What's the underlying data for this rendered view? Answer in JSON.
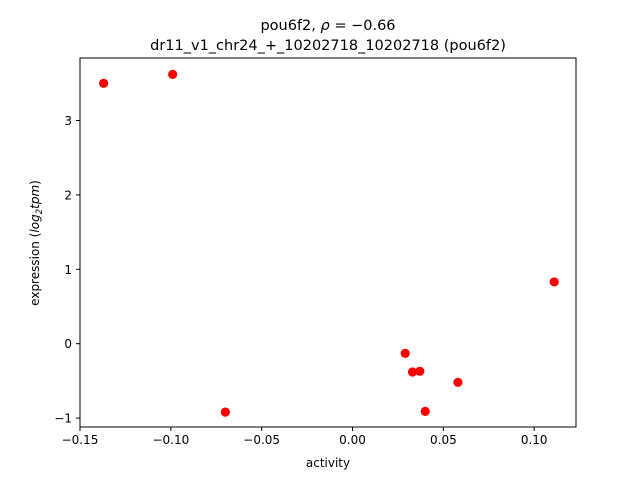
{
  "chart_data": {
    "type": "scatter",
    "title_line1_prefix": "pou6f2, ",
    "title_line1_rho": "ρ",
    "title_line1_suffix": " = −0.66",
    "title_line2": "dr11_v1_chr24_+_10202718_10202718 (pou6f2)",
    "xlabel": "activity",
    "ylabel_prefix": "expression (",
    "ylabel_math": "log",
    "ylabel_sub": "2",
    "ylabel_math2": "tpm",
    "ylabel_suffix": ")",
    "xlim": [
      -0.15,
      0.123
    ],
    "ylim": [
      -1.12,
      3.84
    ],
    "xticks": [
      -0.15,
      -0.1,
      -0.05,
      0.0,
      0.05,
      0.1
    ],
    "xtick_labels": [
      "−0.15",
      "−0.10",
      "−0.05",
      "0.00",
      "0.05",
      "0.10"
    ],
    "yticks": [
      -1,
      0,
      1,
      2,
      3
    ],
    "ytick_labels": [
      "−1",
      "0",
      "1",
      "2",
      "3"
    ],
    "grid": false,
    "marker_color": "#ff0000",
    "points": [
      {
        "x": -0.137,
        "y": 3.5
      },
      {
        "x": -0.099,
        "y": 3.62
      },
      {
        "x": -0.07,
        "y": -0.92
      },
      {
        "x": 0.029,
        "y": -0.13
      },
      {
        "x": 0.033,
        "y": -0.38
      },
      {
        "x": 0.037,
        "y": -0.37
      },
      {
        "x": 0.04,
        "y": -0.91
      },
      {
        "x": 0.058,
        "y": -0.52
      },
      {
        "x": 0.111,
        "y": 0.83
      }
    ]
  }
}
